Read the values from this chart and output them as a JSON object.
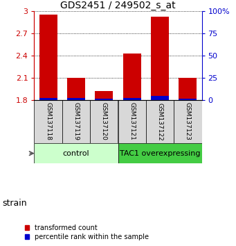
{
  "title": "GDS2451 / 249502_s_at",
  "samples": [
    "GSM137118",
    "GSM137119",
    "GSM137120",
    "GSM137121",
    "GSM137122",
    "GSM137123"
  ],
  "red_values": [
    2.95,
    2.1,
    1.92,
    2.43,
    2.92,
    2.1
  ],
  "blue_values": [
    1.83,
    1.825,
    1.82,
    1.83,
    1.855,
    1.82
  ],
  "ymin": 1.8,
  "ymax": 3.0,
  "yticks": [
    1.8,
    2.1,
    2.4,
    2.7,
    3.0
  ],
  "ytick_labels": [
    "1.8",
    "2.1",
    "2.4",
    "2.7",
    "3"
  ],
  "y2ticks": [
    0,
    25,
    50,
    75,
    100
  ],
  "y2tick_labels": [
    "0",
    "25",
    "50",
    "75",
    "100%"
  ],
  "red_color": "#cc0000",
  "blue_color": "#0000cc",
  "bar_width": 0.65,
  "groups": [
    {
      "label": "control",
      "indices": [
        0,
        1,
        2
      ],
      "color": "#ccffcc"
    },
    {
      "label": "TAC1 overexpressing",
      "indices": [
        3,
        4,
        5
      ],
      "color": "#44cc44"
    }
  ],
  "strain_label": "strain",
  "legend_red": "transformed count",
  "legend_blue": "percentile rank within the sample",
  "left_color": "#cc0000",
  "right_color": "#0000cc",
  "title_fontsize": 10,
  "tick_fontsize": 8,
  "sample_fontsize": 6.5,
  "group_label_fontsize": 8,
  "strain_fontsize": 9,
  "legend_fontsize": 7,
  "bg_color": "#d8d8d8"
}
